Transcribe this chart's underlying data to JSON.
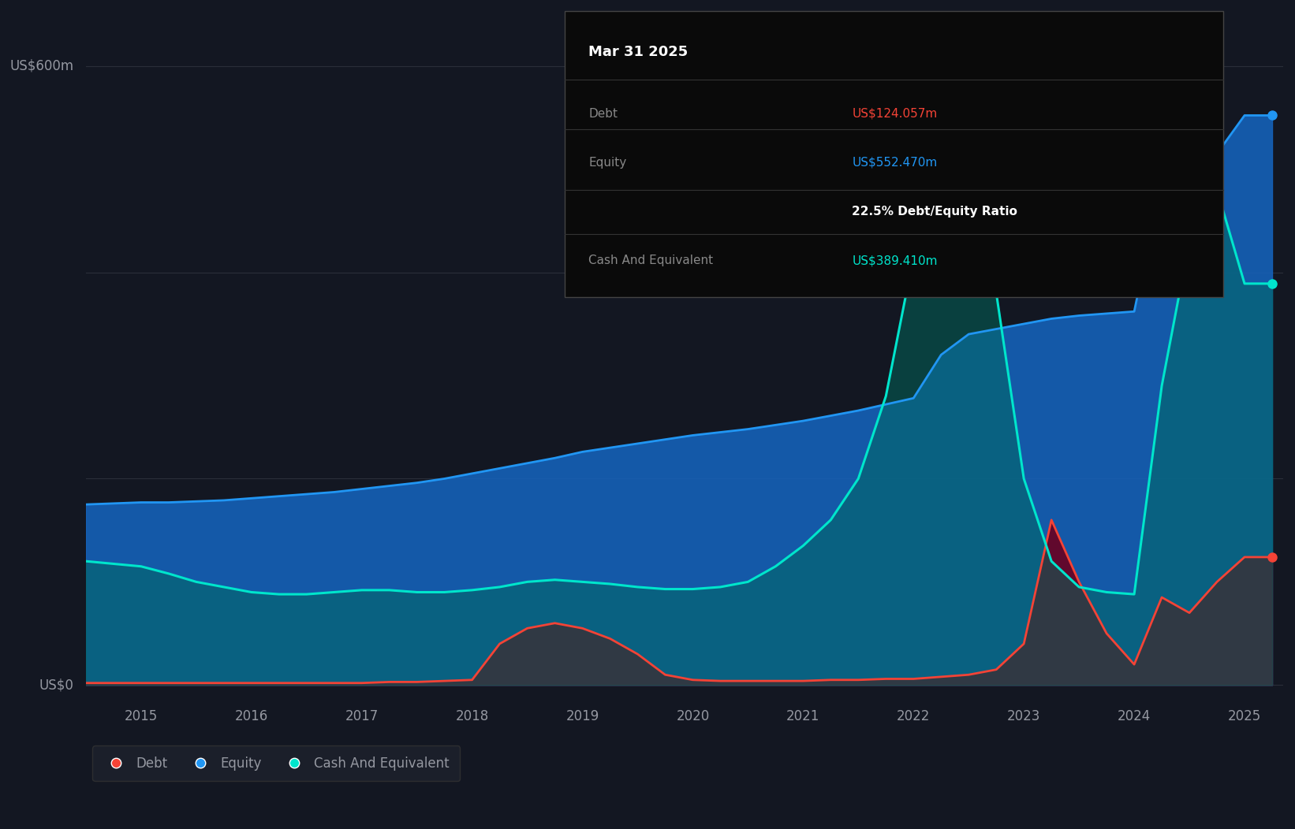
{
  "bg_color": "#131722",
  "plot_bg_color": "#131722",
  "grid_color": "#2a2e39",
  "title_label": "US$600m",
  "zero_label": "US$0",
  "x_ticks": [
    2015,
    2016,
    2017,
    2018,
    2019,
    2020,
    2021,
    2022,
    2023,
    2024,
    2025
  ],
  "equity_color": "#2196f3",
  "debt_color": "#f44336",
  "cash_color": "#00e5cc",
  "equity_fill": "#1565c0",
  "debt_fill": "#880e1a",
  "cash_fill": "#00bfa5",
  "tooltip_bg": "#000000",
  "tooltip_border": "#333333",
  "tooltip_title": "Mar 31 2025",
  "tooltip_debt_label": "Debt",
  "tooltip_debt_value": "US$124.057m",
  "tooltip_equity_label": "Equity",
  "tooltip_equity_value": "US$552.470m",
  "tooltip_ratio": "22.5% Debt/Equity Ratio",
  "tooltip_cash_label": "Cash And Equivalent",
  "tooltip_cash_value": "US$389.410m",
  "legend_items": [
    "Debt",
    "Equity",
    "Cash And Equivalent"
  ],
  "ymax": 640,
  "ymin": -20,
  "equity_data": {
    "x": [
      2014.5,
      2015.0,
      2015.25,
      2015.5,
      2015.75,
      2016.0,
      2016.25,
      2016.5,
      2016.75,
      2017.0,
      2017.25,
      2017.5,
      2017.75,
      2018.0,
      2018.25,
      2018.5,
      2018.75,
      2019.0,
      2019.25,
      2019.5,
      2019.75,
      2020.0,
      2020.25,
      2020.5,
      2020.75,
      2021.0,
      2021.25,
      2021.5,
      2021.75,
      2022.0,
      2022.25,
      2022.5,
      2022.75,
      2023.0,
      2023.25,
      2023.5,
      2023.75,
      2024.0,
      2024.25,
      2024.5,
      2024.75,
      2025.0,
      2025.25
    ],
    "y": [
      175,
      177,
      177,
      178,
      179,
      181,
      183,
      185,
      187,
      190,
      193,
      196,
      200,
      205,
      210,
      215,
      220,
      226,
      230,
      234,
      238,
      242,
      245,
      248,
      252,
      256,
      261,
      266,
      272,
      278,
      320,
      340,
      345,
      350,
      355,
      358,
      360,
      362,
      490,
      502,
      515,
      552,
      552
    ]
  },
  "debt_data": {
    "x": [
      2014.5,
      2015.0,
      2015.25,
      2015.5,
      2015.75,
      2016.0,
      2016.25,
      2016.5,
      2016.75,
      2017.0,
      2017.25,
      2017.5,
      2017.75,
      2018.0,
      2018.25,
      2018.5,
      2018.75,
      2019.0,
      2019.25,
      2019.5,
      2019.75,
      2020.0,
      2020.25,
      2020.5,
      2020.75,
      2021.0,
      2021.25,
      2021.5,
      2021.75,
      2022.0,
      2022.25,
      2022.5,
      2022.75,
      2023.0,
      2023.25,
      2023.5,
      2023.75,
      2024.0,
      2024.25,
      2024.5,
      2024.75,
      2025.0,
      2025.25
    ],
    "y": [
      2,
      2,
      2,
      2,
      2,
      2,
      2,
      2,
      2,
      2,
      3,
      3,
      4,
      5,
      40,
      55,
      60,
      55,
      45,
      30,
      10,
      5,
      4,
      4,
      4,
      4,
      5,
      5,
      6,
      6,
      8,
      10,
      15,
      40,
      160,
      100,
      50,
      20,
      85,
      70,
      100,
      124,
      124
    ]
  },
  "cash_data": {
    "x": [
      2014.5,
      2015.0,
      2015.25,
      2015.5,
      2015.75,
      2016.0,
      2016.25,
      2016.5,
      2016.75,
      2017.0,
      2017.25,
      2017.5,
      2017.75,
      2018.0,
      2018.25,
      2018.5,
      2018.75,
      2019.0,
      2019.25,
      2019.5,
      2019.75,
      2020.0,
      2020.25,
      2020.5,
      2020.75,
      2021.0,
      2021.25,
      2021.5,
      2021.75,
      2022.0,
      2022.25,
      2022.5,
      2022.75,
      2023.0,
      2023.25,
      2023.5,
      2023.75,
      2024.0,
      2024.25,
      2024.5,
      2024.75,
      2025.0,
      2025.25
    ],
    "y": [
      120,
      115,
      108,
      100,
      95,
      90,
      88,
      88,
      90,
      92,
      92,
      90,
      90,
      92,
      95,
      100,
      102,
      100,
      98,
      95,
      93,
      93,
      95,
      100,
      115,
      135,
      160,
      200,
      280,
      415,
      595,
      520,
      380,
      200,
      120,
      95,
      90,
      88,
      290,
      430,
      480,
      389,
      389
    ]
  }
}
